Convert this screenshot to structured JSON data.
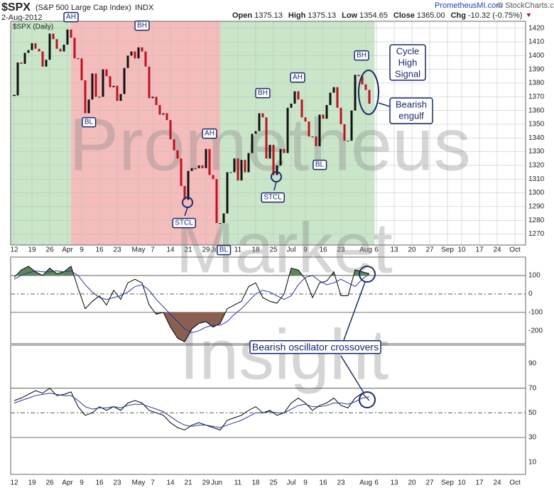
{
  "header": {
    "symbol": "$SPX",
    "name": "(S&P 500 Large Cap Index)",
    "exchange": "INDX",
    "date": "2-Aug-2012",
    "quote": [
      {
        "label": "Open",
        "value": "1375.13"
      },
      {
        "label": "High",
        "value": "1375.13"
      },
      {
        "label": "Low",
        "value": "1354.65"
      },
      {
        "label": "Close",
        "value": "1365.00"
      },
      {
        "label": "Chg",
        "value": "-10.32 (-0.75%)"
      }
    ],
    "site": "PrometheusMI.com",
    "source": "© StockCharts.com"
  },
  "watermark": [
    "Prometheus",
    "Market",
    "Insight"
  ],
  "chart_data": [
    {
      "type": "price-bars",
      "label": "$SPX (Daily)",
      "xlim": [
        -1,
        144
      ],
      "ylim": [
        1262,
        1425
      ],
      "yticks": [
        1270,
        1280,
        1290,
        1300,
        1310,
        1320,
        1330,
        1340,
        1350,
        1360,
        1370,
        1380,
        1390,
        1400,
        1410,
        1420
      ],
      "xticks": [
        {
          "value": 0,
          "label": "12"
        },
        {
          "value": 5,
          "label": "19"
        },
        {
          "value": 10,
          "label": "26"
        },
        {
          "value": 15,
          "label": "Apr"
        },
        {
          "value": 19,
          "label": "9"
        },
        {
          "value": 24,
          "label": "16"
        },
        {
          "value": 29,
          "label": "23"
        },
        {
          "value": 35,
          "label": "May"
        },
        {
          "value": 39,
          "label": "7"
        },
        {
          "value": 44,
          "label": "14"
        },
        {
          "value": 49,
          "label": "21"
        },
        {
          "value": 54,
          "label": "29"
        },
        {
          "value": 57,
          "label": "Jun"
        },
        {
          "value": 63,
          "label": "11"
        },
        {
          "value": 68,
          "label": "18"
        },
        {
          "value": 73,
          "label": "25"
        },
        {
          "value": 78,
          "label": "Jul"
        },
        {
          "value": 82,
          "label": "9"
        },
        {
          "value": 87,
          "label": "16"
        },
        {
          "value": 92,
          "label": "23"
        },
        {
          "value": 99,
          "label": "Aug"
        },
        {
          "value": 102,
          "label": "6"
        },
        {
          "value": 107,
          "label": "13"
        },
        {
          "value": 112,
          "label": "20"
        },
        {
          "value": 117,
          "label": "27"
        },
        {
          "value": 122,
          "label": "Sep"
        },
        {
          "value": 126,
          "label": "10"
        },
        {
          "value": 131,
          "label": "17"
        },
        {
          "value": 136,
          "label": "24"
        },
        {
          "value": 141,
          "label": "Oct"
        }
      ],
      "grid": true,
      "up_color": "#111111",
      "down_color": "#c0101e",
      "shading": [
        {
          "from": -1,
          "to": 16,
          "color": "#c9e6c9"
        },
        {
          "from": 16,
          "to": 58,
          "color": "#f5bcbc"
        },
        {
          "from": 58,
          "to": 101.5,
          "color": "#c9e6c9"
        }
      ],
      "x": [
        0,
        1,
        2,
        3,
        4,
        5,
        6,
        7,
        8,
        9,
        10,
        11,
        12,
        13,
        14,
        15,
        16,
        17,
        18,
        19,
        20,
        21,
        22,
        23,
        24,
        25,
        26,
        27,
        28,
        29,
        30,
        31,
        32,
        33,
        34,
        35,
        36,
        37,
        38,
        39,
        40,
        41,
        42,
        43,
        44,
        45,
        46,
        47,
        48,
        49,
        50,
        51,
        52,
        53,
        54,
        55,
        56,
        57,
        58,
        59,
        60,
        61,
        62,
        63,
        64,
        65,
        66,
        67,
        68,
        69,
        70,
        71,
        72,
        73,
        74,
        75,
        76,
        77,
        78,
        79,
        80,
        81,
        82,
        83,
        84,
        85,
        86,
        87,
        88,
        89,
        90,
        91,
        92,
        93,
        94,
        95,
        96,
        97,
        98,
        99,
        100
      ],
      "values": [
        1371,
        1395,
        1394,
        1402,
        1404,
        1409,
        1405,
        1403,
        1392,
        1397,
        1416,
        1412,
        1405,
        1403,
        1408,
        1419,
        1413,
        1398,
        1398,
        1382,
        1358,
        1368,
        1387,
        1370,
        1370,
        1390,
        1385,
        1377,
        1378,
        1367,
        1372,
        1391,
        1400,
        1403,
        1398,
        1406,
        1403,
        1392,
        1369,
        1370,
        1364,
        1357,
        1358,
        1353,
        1339,
        1331,
        1325,
        1305,
        1295,
        1316,
        1318,
        1318,
        1320,
        1318,
        1332,
        1313,
        1310,
        1278,
        1278,
        1285,
        1315,
        1315,
        1325,
        1309,
        1324,
        1315,
        1329,
        1343,
        1345,
        1358,
        1355,
        1325,
        1335,
        1313,
        1320,
        1332,
        1329,
        1362,
        1365,
        1374,
        1368,
        1355,
        1352,
        1341,
        1341,
        1334,
        1357,
        1354,
        1364,
        1373,
        1377,
        1362,
        1350,
        1338,
        1338,
        1360,
        1386,
        1385,
        1379,
        1375,
        1365
      ],
      "annotations": [
        "AH",
        "BH",
        "BL",
        "AH",
        "BL",
        "BH",
        "STCL",
        "STCL",
        "AH",
        "BL",
        "BH",
        [
          "Cycle",
          "High",
          "Signal"
        ],
        [
          "Bearish",
          "engulf"
        ]
      ]
    },
    {
      "type": "line",
      "ylim": [
        -270,
        200
      ],
      "yticks": [
        100,
        0,
        -100,
        -200
      ],
      "levels": [
        100,
        -100
      ],
      "center_line": 0,
      "fills": [
        {
          "above": 100,
          "color": "#5d875a"
        },
        {
          "below": -100,
          "color": "#8a5f50"
        }
      ],
      "series": [
        {
          "color": "#000000",
          "x": [
            0,
            2,
            4,
            6,
            8,
            10,
            12,
            14,
            16,
            18,
            20,
            22,
            24,
            26,
            28,
            30,
            32,
            34,
            36,
            38,
            40,
            42,
            44,
            46,
            48,
            50,
            52,
            54,
            56,
            58,
            60,
            62,
            64,
            66,
            68,
            70,
            72,
            74,
            76,
            78,
            80,
            82,
            84,
            86,
            88,
            90,
            92,
            94,
            96,
            98,
            100
          ],
          "values": [
            90,
            130,
            150,
            120,
            100,
            140,
            110,
            120,
            150,
            30,
            -80,
            -40,
            -10,
            -60,
            20,
            -30,
            60,
            80,
            60,
            -60,
            -110,
            -100,
            -180,
            -240,
            -260,
            -190,
            -160,
            -150,
            -180,
            -160,
            -80,
            -60,
            -40,
            40,
            60,
            -20,
            -40,
            -50,
            0,
            140,
            130,
            80,
            -20,
            60,
            70,
            120,
            -10,
            -10,
            130,
            120,
            110
          ]
        },
        {
          "color": "#2233aa",
          "x": [
            0,
            2,
            4,
            6,
            8,
            10,
            12,
            14,
            16,
            18,
            20,
            22,
            24,
            26,
            28,
            30,
            32,
            34,
            36,
            38,
            40,
            42,
            44,
            46,
            48,
            50,
            52,
            54,
            56,
            58,
            60,
            62,
            64,
            66,
            68,
            70,
            72,
            74,
            76,
            78,
            80,
            82,
            84,
            86,
            88,
            90,
            92,
            94,
            96,
            98,
            100
          ],
          "values": [
            80,
            100,
            115,
            125,
            120,
            120,
            125,
            120,
            125,
            100,
            50,
            10,
            -20,
            -30,
            -20,
            -10,
            10,
            40,
            50,
            20,
            -30,
            -70,
            -110,
            -150,
            -190,
            -210,
            -200,
            -180,
            -170,
            -170,
            -150,
            -110,
            -80,
            -40,
            0,
            20,
            10,
            -10,
            -30,
            -10,
            50,
            90,
            100,
            70,
            50,
            60,
            80,
            60,
            40,
            80,
            110
          ]
        }
      ],
      "annotation": "Bearish oscillator crossovers"
    },
    {
      "type": "line",
      "ylim": [
        0,
        105
      ],
      "yticks": [
        90,
        70,
        50,
        30,
        10
      ],
      "levels": [
        70,
        30
      ],
      "center_line": 50,
      "series": [
        {
          "color": "#000000",
          "x": [
            0,
            2,
            4,
            6,
            8,
            10,
            12,
            14,
            16,
            18,
            20,
            22,
            24,
            26,
            28,
            30,
            32,
            34,
            36,
            38,
            40,
            42,
            44,
            46,
            48,
            50,
            52,
            54,
            56,
            58,
            60,
            62,
            64,
            66,
            68,
            70,
            72,
            74,
            76,
            78,
            80,
            82,
            84,
            86,
            88,
            90,
            92,
            94,
            96,
            98,
            100
          ],
          "values": [
            60,
            62,
            65,
            68,
            66,
            70,
            64,
            65,
            67,
            55,
            48,
            50,
            55,
            52,
            55,
            52,
            58,
            60,
            58,
            52,
            50,
            48,
            42,
            38,
            36,
            40,
            42,
            40,
            38,
            36,
            44,
            46,
            48,
            52,
            55,
            50,
            52,
            48,
            50,
            58,
            62,
            58,
            52,
            56,
            58,
            62,
            56,
            54,
            62,
            66,
            60
          ]
        },
        {
          "color": "#2233aa",
          "x": [
            0,
            2,
            4,
            6,
            8,
            10,
            12,
            14,
            16,
            18,
            20,
            22,
            24,
            26,
            28,
            30,
            32,
            34,
            36,
            38,
            40,
            42,
            44,
            46,
            48,
            50,
            52,
            54,
            56,
            58,
            60,
            62,
            64,
            66,
            68,
            70,
            72,
            74,
            76,
            78,
            80,
            82,
            84,
            86,
            88,
            90,
            92,
            94,
            96,
            98,
            100
          ],
          "values": [
            58,
            60,
            62,
            64,
            65,
            66,
            65,
            64,
            64,
            60,
            55,
            53,
            54,
            54,
            55,
            54,
            56,
            57,
            57,
            55,
            53,
            51,
            47,
            43,
            40,
            39,
            40,
            40,
            39,
            38,
            40,
            42,
            44,
            47,
            50,
            50,
            51,
            50,
            50,
            53,
            56,
            57,
            55,
            55,
            56,
            58,
            58,
            57,
            59,
            62,
            63
          ]
        }
      ]
    }
  ]
}
